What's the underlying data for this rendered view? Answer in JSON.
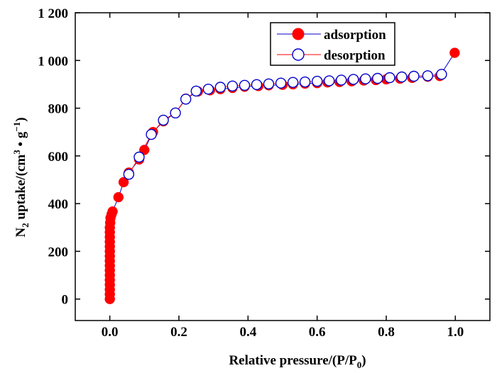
{
  "chart_data": {
    "type": "scatter",
    "title": "",
    "xlabel": {
      "main": "Relative pressure/(P/P",
      "sub": "0",
      "tail": ")"
    },
    "ylabel": {
      "pre": "N",
      "sub": "2",
      "mid": " uptake/(cm",
      "sup1": "3",
      "dot": " • g",
      "sup2": "−1",
      "tail": ")"
    },
    "xlim": [
      -0.1,
      1.1
    ],
    "ylim": [
      -90,
      1200
    ],
    "xticks": [
      0.0,
      0.2,
      0.4,
      0.6,
      0.8,
      1.0
    ],
    "xtick_labels": [
      "0.0",
      "0.2",
      "0.4",
      "0.6",
      "0.8",
      "1.0"
    ],
    "yticks": [
      0,
      200,
      400,
      600,
      800,
      1000,
      1200
    ],
    "ytick_labels": [
      "0",
      "200",
      "400",
      "600",
      "800",
      "1 000",
      "1 200"
    ],
    "grid": false,
    "legend_position": "top-right",
    "series": [
      {
        "name": "adsorption",
        "marker": "filled-circle",
        "marker_color": "#ff0000",
        "line_color": "#0000cc",
        "points": [
          [
            0.0,
            0
          ],
          [
            0.0,
            20
          ],
          [
            0.0,
            40
          ],
          [
            0.0,
            60
          ],
          [
            0.0,
            80
          ],
          [
            0.0,
            100
          ],
          [
            0.0,
            120
          ],
          [
            0.0,
            140
          ],
          [
            0.0,
            160
          ],
          [
            0.0,
            180
          ],
          [
            0.0,
            200
          ],
          [
            0.0,
            220
          ],
          [
            0.0,
            240
          ],
          [
            0.0,
            260
          ],
          [
            0.0,
            280
          ],
          [
            0.0,
            300
          ],
          [
            0.001,
            320
          ],
          [
            0.002,
            340
          ],
          [
            0.005,
            355
          ],
          [
            0.008,
            367
          ],
          [
            0.025,
            427
          ],
          [
            0.04,
            490
          ],
          [
            0.055,
            530
          ],
          [
            0.085,
            585
          ],
          [
            0.1,
            625
          ],
          [
            0.125,
            700
          ],
          [
            0.155,
            745
          ],
          [
            0.19,
            780
          ],
          [
            0.22,
            840
          ],
          [
            0.255,
            870
          ],
          [
            0.29,
            875
          ],
          [
            0.32,
            880
          ],
          [
            0.355,
            885
          ],
          [
            0.39,
            890
          ],
          [
            0.43,
            893
          ],
          [
            0.46,
            896
          ],
          [
            0.5,
            898
          ],
          [
            0.53,
            900
          ],
          [
            0.565,
            903
          ],
          [
            0.6,
            905
          ],
          [
            0.63,
            908
          ],
          [
            0.665,
            910
          ],
          [
            0.7,
            913
          ],
          [
            0.735,
            916
          ],
          [
            0.77,
            918
          ],
          [
            0.8,
            921
          ],
          [
            0.84,
            924
          ],
          [
            0.875,
            927
          ],
          [
            0.92,
            932
          ],
          [
            0.955,
            935
          ],
          [
            0.998,
            1032
          ]
        ]
      },
      {
        "name": "desorption",
        "marker": "open-circle",
        "marker_color": "#0000cc",
        "line_color": "#ff0000",
        "points": [
          [
            0.96,
            942
          ],
          [
            0.92,
            936
          ],
          [
            0.88,
            934
          ],
          [
            0.845,
            931
          ],
          [
            0.81,
            928
          ],
          [
            0.775,
            925
          ],
          [
            0.74,
            923
          ],
          [
            0.705,
            921
          ],
          [
            0.67,
            918
          ],
          [
            0.635,
            915
          ],
          [
            0.6,
            913
          ],
          [
            0.565,
            910
          ],
          [
            0.53,
            908
          ],
          [
            0.495,
            905
          ],
          [
            0.46,
            902
          ],
          [
            0.425,
            899
          ],
          [
            0.39,
            896
          ],
          [
            0.355,
            893
          ],
          [
            0.32,
            888
          ],
          [
            0.285,
            880
          ],
          [
            0.25,
            872
          ],
          [
            0.22,
            838
          ],
          [
            0.19,
            780
          ],
          [
            0.155,
            750
          ],
          [
            0.12,
            690
          ],
          [
            0.085,
            595
          ],
          [
            0.055,
            523
          ]
        ]
      }
    ]
  }
}
